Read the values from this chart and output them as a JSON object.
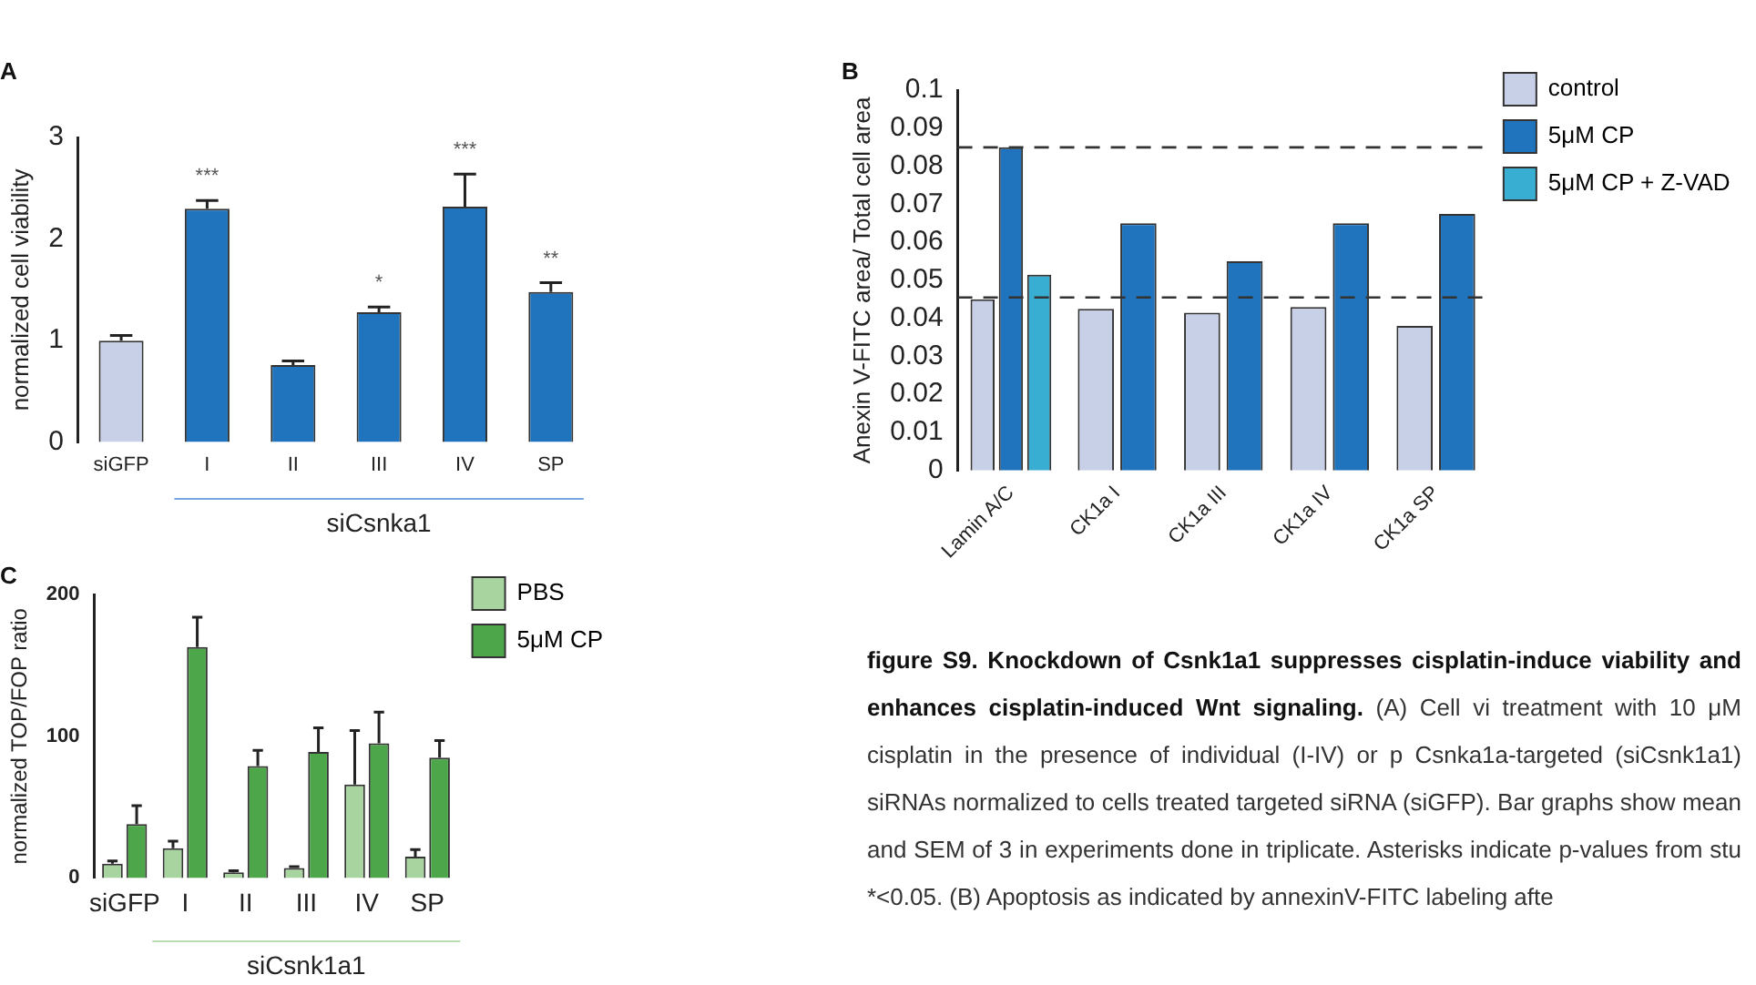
{
  "chart_data": [
    {
      "type": "bar",
      "title": "A",
      "ylabel": "normalized cell viability",
      "xlabel": "siCsnka1",
      "categories": [
        "siGFP",
        "I",
        "II",
        "III",
        "IV",
        "SP"
      ],
      "values": [
        1.0,
        2.3,
        0.76,
        1.28,
        2.32,
        1.48
      ],
      "colors": [
        "#c8d0e8",
        "#1f74bd",
        "#1f74bd",
        "#1f74bd",
        "#1f74bd",
        "#1f74bd"
      ],
      "errors": [
        [
          1.0,
          1.05
        ],
        [
          2.3,
          2.38
        ],
        [
          0.76,
          0.8
        ],
        [
          1.28,
          1.33
        ],
        [
          2.32,
          2.64
        ],
        [
          1.48,
          1.57
        ]
      ],
      "ylim": [
        0,
        3
      ],
      "yticks": [
        0,
        1,
        2,
        3
      ],
      "grid": false,
      "legend": false,
      "annotations": [
        {
          "text": "***",
          "x": "I",
          "y": 2.3
        },
        {
          "text": "*",
          "x": "III",
          "y": 1.28
        },
        {
          "text": "***",
          "x": "IV",
          "y": 2.32
        },
        {
          "text": "**",
          "x": "SP",
          "y": 1.48
        }
      ]
    },
    {
      "type": "bar",
      "title": "B",
      "ylabel": "Anexin V-FITC area/ Total cell area",
      "categories": [
        "Lamin A/C",
        "CK1a I",
        "CK1a III",
        "CK1a IV",
        "CK1a SP"
      ],
      "series": [
        {
          "name": "control",
          "color": "#c8d0e8",
          "values": [
            0.045,
            0.0425,
            0.0415,
            0.043,
            0.038
          ]
        },
        {
          "name": "5μM CP",
          "color": "#1f74bd",
          "values": [
            0.085,
            0.065,
            0.055,
            0.065,
            0.0675
          ]
        },
        {
          "name": "5μM CP + Z-VAD",
          "color": "#38aed3",
          "values": [
            0.0515,
            null,
            null,
            null,
            null
          ]
        }
      ],
      "ylim": [
        0,
        0.1
      ],
      "yticks": [
        0,
        0.01,
        0.02,
        0.03,
        0.04,
        0.05,
        0.06,
        0.07,
        0.08,
        0.09,
        0.1
      ],
      "grid": false,
      "legend": "right",
      "ref_lines": [
        {
          "axis": "y",
          "value": 0.085,
          "line_style": "dashed",
          "color": "#333333"
        },
        {
          "axis": "y",
          "value": 0.0455,
          "line_style": "dashed",
          "color": "#333333"
        }
      ]
    },
    {
      "type": "bar",
      "title": "C",
      "ylabel": "normalized TOP/FOP ratio",
      "xlabel": "siCsnk1a1",
      "categories": [
        "siGFP",
        "I",
        "II",
        "III",
        "IV",
        "SP"
      ],
      "series": [
        {
          "name": "PBS",
          "color": "#a8d4a0",
          "values": [
            10,
            21,
            4,
            7,
            66,
            15
          ],
          "errors": [
            [
              10,
              12
            ],
            [
              21,
              26
            ],
            [
              4,
              5
            ],
            [
              7,
              8
            ],
            [
              66,
              104
            ],
            [
              15,
              20
            ]
          ]
        },
        {
          "name": "5μM CP",
          "color": "#4ea64a",
          "values": [
            38,
            163,
            79,
            89,
            95,
            85
          ],
          "errors": [
            [
              38,
              51
            ],
            [
              163,
              184
            ],
            [
              79,
              90
            ],
            [
              89,
              106
            ],
            [
              95,
              117
            ],
            [
              85,
              97
            ]
          ]
        }
      ],
      "ylim": [
        0,
        200
      ],
      "yticks": [
        0,
        100,
        200
      ],
      "grid": false,
      "legend": "top right"
    },
    {
      "type": "other",
      "title": "figure S9. Knockdown of Csnk1a1 suppresses cisplatin-induce viability and enhances cisplatin-induced Wnt signaling.",
      "annotations": [
        "(A) Cell vi treatment with 10 μM cisplatin in the presence of individual (I-IV) or p Csnka1a-targeted (siCsnk1a1) siRNAs normalized to cells treated targeted siRNA (siGFP). Bar graphs show mean and SEM of 3 in experiments done in triplicate. Asterisks indicate p-values from stu *<0.05. (B) Apoptosis as indicated by annexinV-FITC labeling afte"
      ]
    }
  ]
}
